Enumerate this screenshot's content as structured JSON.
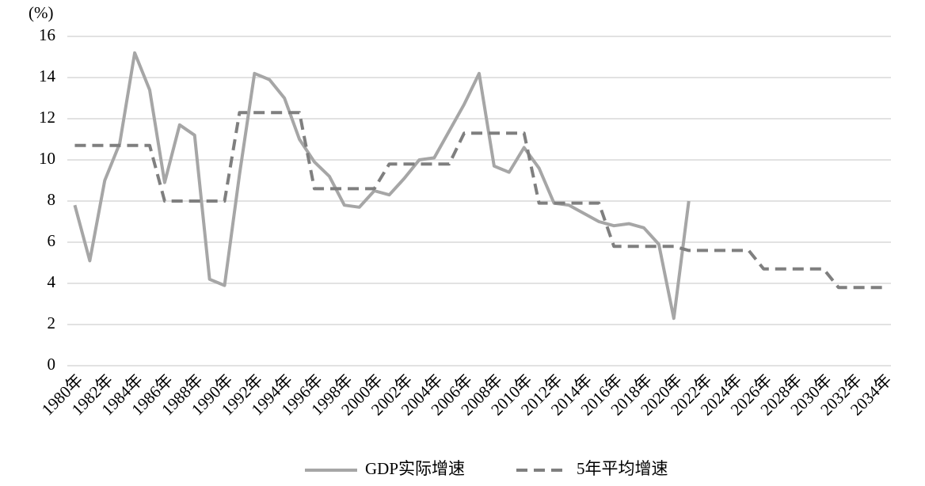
{
  "chart_data": {
    "type": "line",
    "y_label": "(%)",
    "categories": [
      "1980年",
      null,
      "1982年",
      null,
      "1984年",
      null,
      "1986年",
      null,
      "1988年",
      null,
      "1990年",
      null,
      "1992年",
      null,
      "1994年",
      null,
      "1996年",
      null,
      "1998年",
      null,
      "2000年",
      null,
      "2002年",
      null,
      "2004年",
      null,
      "2006年",
      null,
      "2008年",
      null,
      "2010年",
      null,
      "2012年",
      null,
      "2014年",
      null,
      "2016年",
      null,
      "2018年",
      null,
      "2020年",
      null,
      "2022年",
      null,
      "2024年",
      null,
      "2026年",
      null,
      "2028年",
      null,
      "2030年",
      null,
      "2032年",
      null,
      "2034年"
    ],
    "series": [
      {
        "name": "GDP实际增速",
        "color": "#a6a6a6",
        "dash": false,
        "values": [
          7.8,
          5.1,
          9.0,
          10.8,
          15.2,
          13.4,
          8.9,
          11.7,
          11.2,
          4.2,
          3.9,
          9.3,
          14.2,
          13.9,
          13.0,
          11.0,
          9.9,
          9.2,
          7.8,
          7.7,
          8.5,
          8.3,
          9.1,
          10.0,
          10.1,
          11.4,
          12.7,
          14.2,
          9.7,
          9.4,
          10.6,
          9.6,
          7.9,
          7.8,
          7.4,
          7.0,
          6.8,
          6.9,
          6.7,
          5.9,
          2.3,
          8.0,
          null,
          null,
          null,
          null,
          null,
          null,
          null,
          null,
          null,
          null,
          null,
          null,
          null
        ]
      },
      {
        "name": "5年平均增速",
        "color": "#7f7f7f",
        "dash": true,
        "values": [
          10.7,
          10.7,
          10.7,
          10.7,
          10.7,
          10.7,
          8.0,
          8.0,
          8.0,
          8.0,
          8.0,
          12.3,
          12.3,
          12.3,
          12.3,
          12.3,
          8.6,
          8.6,
          8.6,
          8.6,
          8.6,
          9.8,
          9.8,
          9.8,
          9.8,
          9.8,
          11.3,
          11.3,
          11.3,
          11.3,
          11.3,
          7.9,
          7.9,
          7.9,
          7.9,
          7.9,
          5.8,
          5.8,
          5.8,
          5.8,
          5.8,
          5.6,
          5.6,
          5.6,
          5.6,
          5.6,
          4.7,
          4.7,
          4.7,
          4.7,
          4.7,
          3.8,
          3.8,
          3.8,
          3.8
        ]
      }
    ],
    "ylim": [
      0,
      16
    ],
    "yticks": [
      0,
      2,
      4,
      6,
      8,
      10,
      12,
      14,
      16
    ],
    "grid": true,
    "legend": "bottom"
  }
}
